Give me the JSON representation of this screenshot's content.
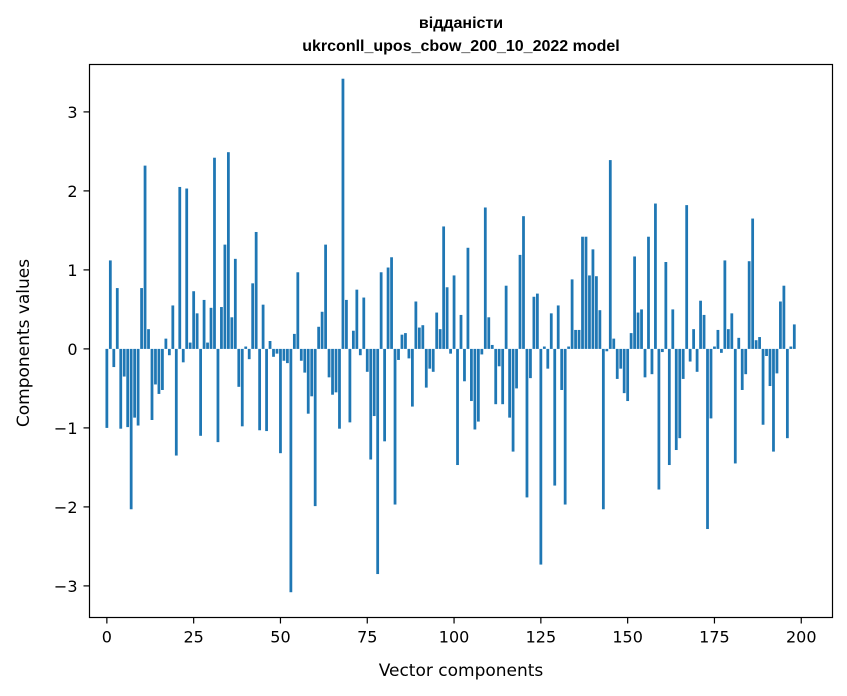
{
  "chart_data": {
    "type": "bar",
    "title_line1": "відданісти",
    "title_line2": "ukrconll_upos_cbow_200_10_2022 model",
    "xlabel": "Vector components",
    "ylabel": "Components values",
    "xlim": [
      -5,
      209
    ],
    "ylim": [
      -3.4,
      3.6
    ],
    "xticks": [
      0,
      25,
      50,
      75,
      100,
      125,
      150,
      175,
      200
    ],
    "yticks": [
      -3,
      -2,
      -1,
      0,
      1,
      2,
      3
    ],
    "bar_color": "#1f77b4",
    "values": [
      -1.0,
      1.12,
      -0.23,
      0.77,
      -1.01,
      -0.35,
      -0.99,
      -2.03,
      -0.87,
      -0.97,
      0.77,
      2.32,
      0.25,
      -0.9,
      -0.45,
      -0.57,
      -0.52,
      0.13,
      -0.08,
      0.55,
      -1.35,
      2.05,
      -0.17,
      2.03,
      0.08,
      0.73,
      0.45,
      -1.1,
      0.62,
      0.08,
      0.52,
      2.42,
      -1.18,
      0.53,
      1.32,
      2.49,
      0.4,
      1.14,
      -0.48,
      -0.98,
      0.03,
      -0.13,
      0.83,
      1.48,
      -1.03,
      0.56,
      -1.04,
      0.1,
      -0.1,
      -0.06,
      -1.32,
      -0.15,
      -0.18,
      -3.08,
      0.19,
      0.97,
      -0.15,
      -0.3,
      -0.82,
      -0.6,
      -1.99,
      0.28,
      0.47,
      1.32,
      -0.36,
      -0.58,
      -0.55,
      -1.01,
      3.42,
      0.62,
      -0.93,
      0.23,
      0.75,
      -0.08,
      0.65,
      -0.29,
      -1.4,
      -0.85,
      -2.85,
      0.97,
      -1.17,
      1.03,
      1.16,
      -1.97,
      -0.14,
      0.18,
      0.2,
      -0.12,
      -0.73,
      0.6,
      0.27,
      0.3,
      -0.49,
      -0.25,
      -0.29,
      0.46,
      0.25,
      1.55,
      0.78,
      -0.06,
      0.93,
      -1.47,
      0.43,
      -0.41,
      1.28,
      -0.66,
      -1.02,
      -0.92,
      -0.07,
      1.79,
      0.4,
      0.05,
      -0.7,
      -0.22,
      -0.7,
      0.8,
      -0.87,
      -1.3,
      -0.5,
      1.19,
      1.68,
      -1.88,
      -0.37,
      0.66,
      0.7,
      -2.73,
      0.03,
      -0.25,
      0.45,
      -1.73,
      0.55,
      -0.52,
      -1.97,
      0.03,
      0.88,
      0.24,
      0.24,
      1.42,
      1.42,
      0.93,
      1.26,
      0.92,
      0.49,
      -2.03,
      -0.03,
      2.39,
      0.13,
      -0.38,
      -0.25,
      -0.56,
      -0.66,
      0.2,
      1.17,
      0.46,
      0.5,
      -0.36,
      1.42,
      -0.32,
      1.84,
      -1.78,
      -0.04,
      1.1,
      -1.47,
      0.5,
      -1.28,
      -1.13,
      -0.38,
      1.82,
      -0.16,
      0.25,
      -0.29,
      0.61,
      0.43,
      -2.28,
      -0.88,
      0.03,
      0.24,
      -0.05,
      1.12,
      0.25,
      0.45,
      -1.45,
      0.14,
      -0.52,
      -0.32,
      1.11,
      1.65,
      0.11,
      0.15,
      -0.96,
      -0.09,
      -0.47,
      -1.3,
      -0.31,
      0.6,
      0.8,
      -1.13,
      0.03,
      0.31
    ]
  }
}
